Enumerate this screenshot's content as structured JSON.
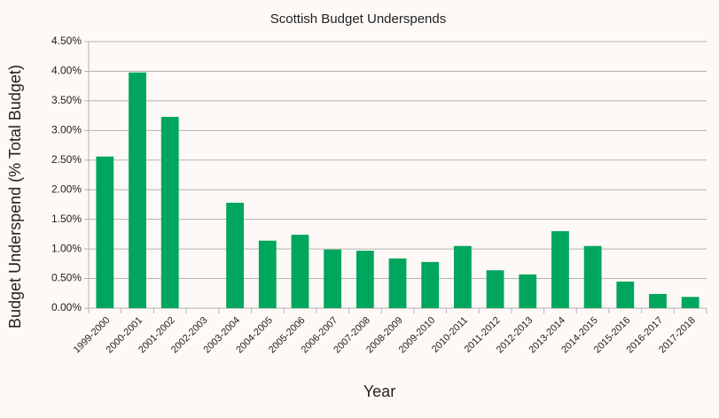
{
  "chart_data": {
    "type": "bar",
    "title": "Scottish Budget Underspends",
    "x_label": "Year",
    "y_label": "Budget Underspend (% Total Budget)",
    "categories": [
      "1999-2000",
      "2000-2001",
      "2001-2002",
      "2002-2003",
      "2003-2004",
      "2004-2005",
      "2005-2006",
      "2006-2007",
      "2007-2008",
      "2008-2009",
      "2009-2010",
      "2010-2011",
      "2011-2012",
      "2012-2013",
      "2013-2014",
      "2014-2015",
      "2015-2016",
      "2016-2017",
      "2017-2018"
    ],
    "values": [
      2.56,
      3.98,
      3.23,
      null,
      1.78,
      1.14,
      1.24,
      0.99,
      0.97,
      0.84,
      0.78,
      1.05,
      0.64,
      0.57,
      1.3,
      1.05,
      0.45,
      0.24,
      0.19
    ],
    "color": "#00a65d",
    "ylim": [
      0,
      4.5
    ],
    "yticks": [
      {
        "value": 0,
        "label": "0.00%"
      },
      {
        "value": 0.5,
        "label": "0.50%"
      },
      {
        "value": 1,
        "label": "1.00%"
      },
      {
        "value": 1.5,
        "label": "1.50%"
      },
      {
        "value": 2,
        "label": "2.00%"
      },
      {
        "value": 2.5,
        "label": "2.50%"
      },
      {
        "value": 3,
        "label": "3.00%"
      },
      {
        "value": 3.5,
        "label": "3.50%"
      },
      {
        "value": 4,
        "label": "4.00%"
      },
      {
        "value": 4.5,
        "label": "4.50%"
      }
    ],
    "grid": true
  }
}
